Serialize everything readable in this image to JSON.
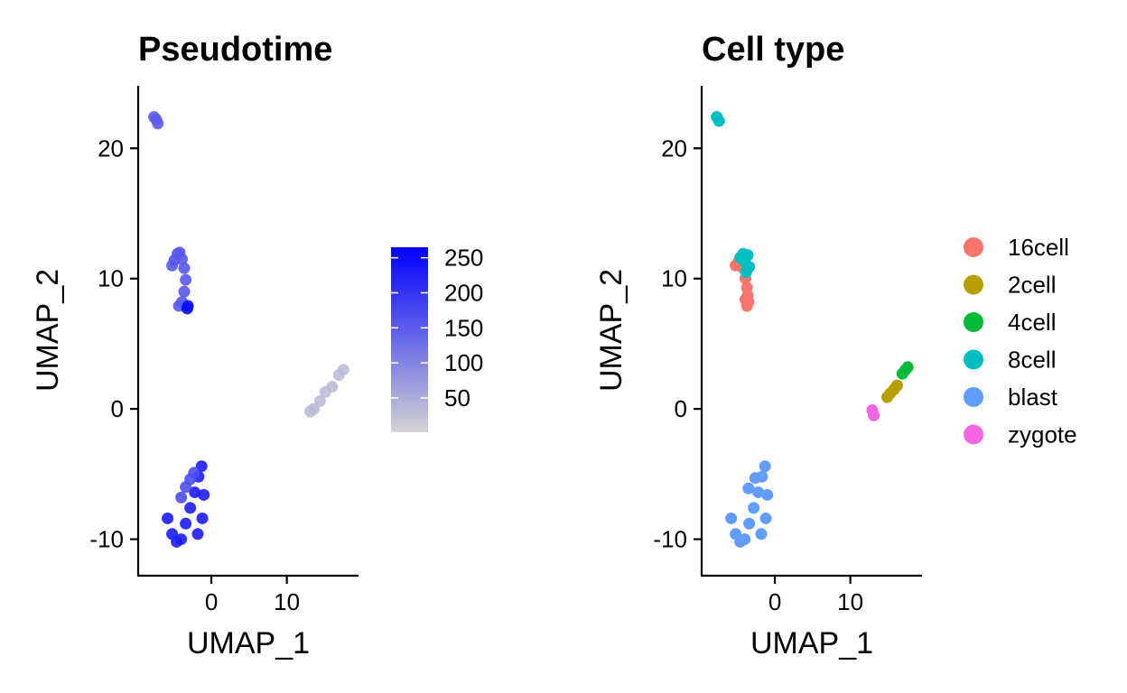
{
  "chart_data": [
    {
      "type": "scatter",
      "title": "Pseudotime",
      "xlabel": "UMAP_1",
      "ylabel": "UMAP_2",
      "xlim": [
        -9.7,
        19.5
      ],
      "ylim": [
        -12.8,
        24.8
      ],
      "xticks": [
        0,
        10
      ],
      "yticks": [
        -10,
        0,
        10,
        20
      ],
      "color_scale": {
        "low_color": "#d3d3d3",
        "high_color": "#0000ff",
        "min": 1,
        "max": 265,
        "ticks": [
          50,
          100,
          150,
          200,
          250
        ]
      },
      "clusters": [
        {
          "x": [
            -7.6,
            -7.3,
            -7.1
          ],
          "y": [
            22.4,
            22.2,
            21.9
          ],
          "value": 150
        },
        {
          "x": [
            -5.2,
            -4.9,
            -4.5,
            -4.2,
            -3.9,
            -3.6,
            -3.4,
            -3.6,
            -3.9,
            -4.3
          ],
          "y": [
            11.0,
            11.4,
            11.9,
            12.0,
            11.5,
            10.8,
            9.9,
            9.0,
            8.2,
            7.9
          ],
          "value": 155
        },
        {
          "x": [
            -3.2,
            -3.1
          ],
          "y": [
            7.7,
            7.9
          ],
          "value": 250
        },
        {
          "x": [
            13.1,
            13.6,
            14.4,
            15.1,
            16.0,
            16.9,
            17.5
          ],
          "y": [
            -0.2,
            0.0,
            0.6,
            1.3,
            1.7,
            2.6,
            3.0
          ],
          "value": 30
        },
        {
          "x": [
            -5.8,
            -5.2,
            -4.6,
            -4.0,
            -3.4,
            -2.8,
            -2.2,
            -1.7,
            -1.3,
            -1.0,
            -1.2,
            -1.8
          ],
          "y": [
            -8.4,
            -9.6,
            -10.2,
            -10.0,
            -8.8,
            -7.6,
            -6.4,
            -5.2,
            -4.4,
            -6.6,
            -8.4,
            -9.6
          ],
          "value": 230
        },
        {
          "x": [
            -4.0,
            -3.4,
            -2.8,
            -2.3
          ],
          "y": [
            -6.8,
            -6.0,
            -5.4,
            -4.9
          ],
          "value": 170
        }
      ]
    },
    {
      "type": "scatter",
      "title": "Cell type",
      "xlabel": "UMAP_1",
      "ylabel": "UMAP_2",
      "xlim": [
        -9.7,
        19.5
      ],
      "ylim": [
        -12.8,
        24.8
      ],
      "xticks": [
        0,
        10
      ],
      "yticks": [
        -10,
        0,
        10,
        20
      ],
      "series": [
        {
          "name": "16cell",
          "color": "#f8766d",
          "x": [
            -5.2,
            -4.8,
            -4.2,
            -3.9,
            -3.7,
            -3.6,
            -3.5,
            -3.7,
            -3.9
          ],
          "y": [
            11.0,
            11.3,
            10.8,
            10.0,
            9.3,
            8.7,
            8.2,
            7.9,
            8.4
          ]
        },
        {
          "name": "2cell",
          "color": "#b79f00",
          "x": [
            14.9,
            15.3,
            15.8,
            16.2
          ],
          "y": [
            0.9,
            1.2,
            1.5,
            1.8
          ]
        },
        {
          "name": "4cell",
          "color": "#00ba38",
          "x": [
            16.9,
            17.3,
            17.6
          ],
          "y": [
            2.7,
            3.0,
            3.2
          ]
        },
        {
          "name": "8cell",
          "color": "#00bfc4",
          "x": [
            -7.7,
            -7.4,
            -4.6,
            -4.2,
            -3.9,
            -3.6,
            -3.4,
            -3.8
          ],
          "y": [
            22.4,
            22.1,
            11.6,
            11.9,
            11.2,
            11.8,
            10.9,
            10.5
          ]
        },
        {
          "name": "blast",
          "color": "#619cff",
          "x": [
            -5.8,
            -5.2,
            -4.6,
            -4.0,
            -3.4,
            -2.8,
            -2.2,
            -1.7,
            -1.3,
            -1.0,
            -1.2,
            -1.8,
            -3.5,
            -2.6
          ],
          "y": [
            -8.4,
            -9.6,
            -10.2,
            -10.0,
            -8.8,
            -7.6,
            -6.4,
            -5.2,
            -4.4,
            -6.6,
            -8.4,
            -9.6,
            -6.1,
            -5.3
          ]
        },
        {
          "name": "zygote",
          "color": "#f564e3",
          "x": [
            12.9,
            13.1
          ],
          "y": [
            -0.1,
            -0.5
          ]
        }
      ]
    }
  ]
}
